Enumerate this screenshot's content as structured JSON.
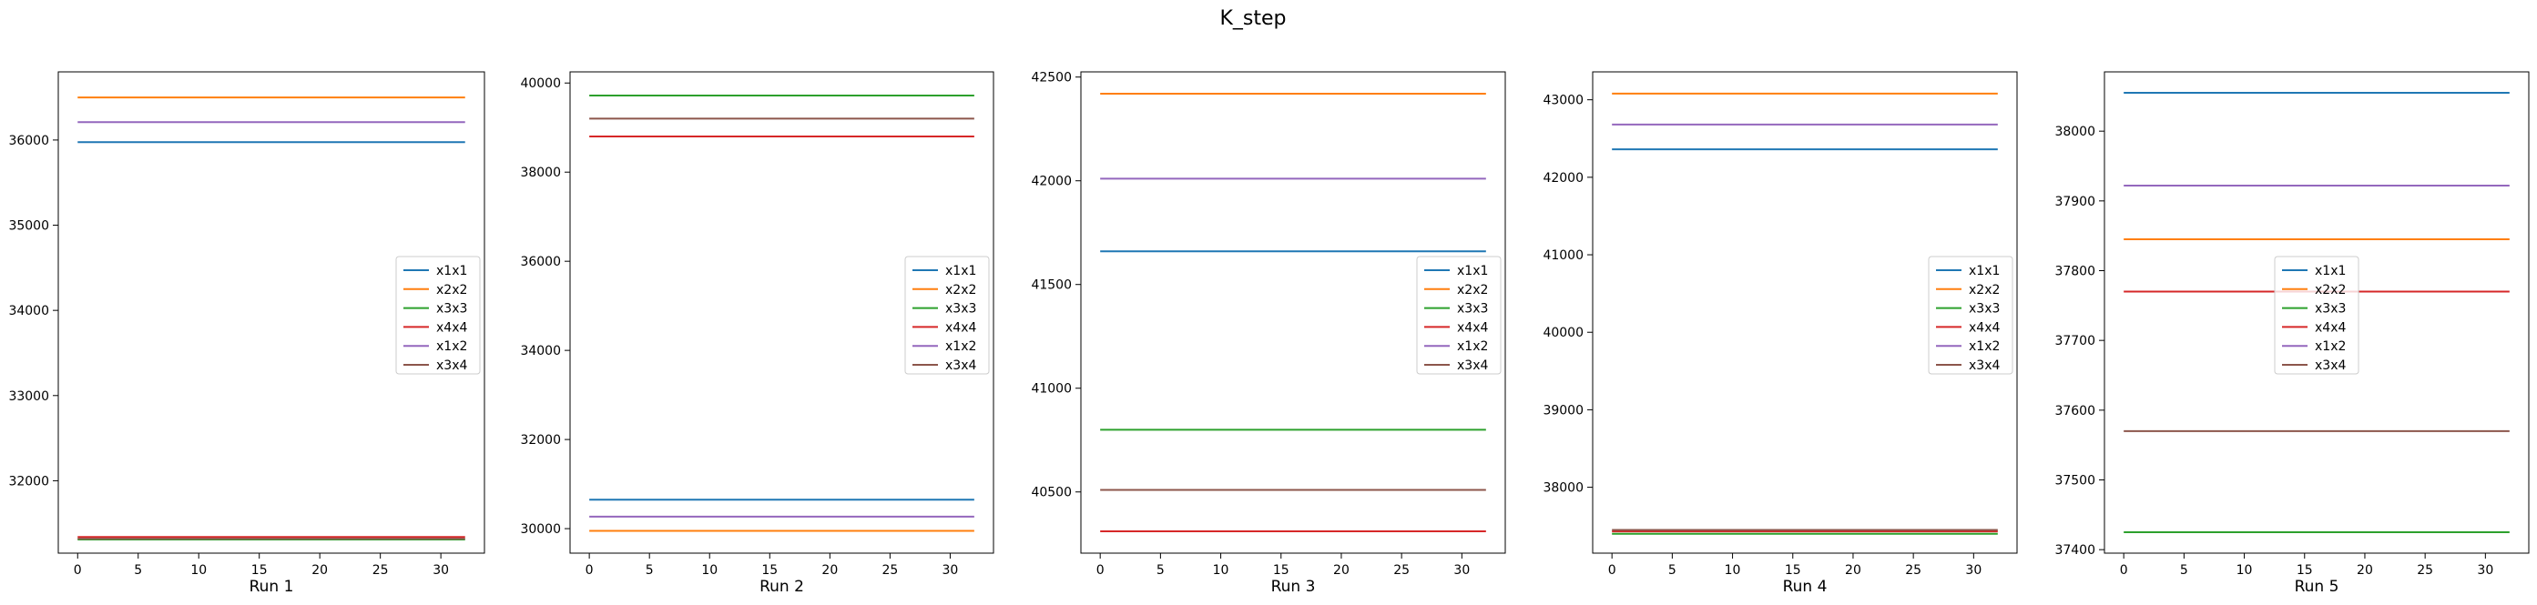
{
  "figure": {
    "title": "K_step"
  },
  "chart_data": [
    {
      "type": "line",
      "xlabel": "Run 1",
      "ylabel": "",
      "x_range": [
        0,
        32
      ],
      "xlim": [
        -1.6,
        33.6
      ],
      "ylim": [
        31150,
        36800
      ],
      "xticks": [
        0,
        5,
        10,
        15,
        20,
        25,
        30
      ],
      "yticks": [
        32000,
        33000,
        34000,
        35000,
        36000
      ],
      "legend_position": "center-right",
      "series": [
        {
          "name": "x1x1",
          "color": "#1f77b4",
          "values": [
            35975
          ]
        },
        {
          "name": "x2x2",
          "color": "#ff7f0e",
          "values": [
            36500
          ]
        },
        {
          "name": "x3x3",
          "color": "#2ca02c",
          "values": [
            31310
          ]
        },
        {
          "name": "x4x4",
          "color": "#d62728",
          "values": [
            31340
          ]
        },
        {
          "name": "x1x2",
          "color": "#9467bd",
          "values": [
            36210
          ]
        },
        {
          "name": "x3x4",
          "color": "#8c564b",
          "values": [
            31320
          ]
        }
      ]
    },
    {
      "type": "line",
      "xlabel": "Run 2",
      "ylabel": "",
      "x_range": [
        0,
        32
      ],
      "xlim": [
        -1.6,
        33.6
      ],
      "ylim": [
        29450,
        40250
      ],
      "xticks": [
        0,
        5,
        10,
        15,
        20,
        25,
        30
      ],
      "yticks": [
        30000,
        32000,
        34000,
        36000,
        38000,
        40000
      ],
      "legend_position": "center-right",
      "series": [
        {
          "name": "x1x1",
          "color": "#1f77b4",
          "values": [
            30650
          ]
        },
        {
          "name": "x2x2",
          "color": "#ff7f0e",
          "values": [
            29950
          ]
        },
        {
          "name": "x3x3",
          "color": "#2ca02c",
          "values": [
            39720
          ]
        },
        {
          "name": "x4x4",
          "color": "#d62728",
          "values": [
            38800
          ]
        },
        {
          "name": "x1x2",
          "color": "#9467bd",
          "values": [
            30270
          ]
        },
        {
          "name": "x3x4",
          "color": "#8c564b",
          "values": [
            39200
          ]
        }
      ]
    },
    {
      "type": "line",
      "xlabel": "Run 3",
      "ylabel": "",
      "x_range": [
        0,
        32
      ],
      "xlim": [
        -1.6,
        33.6
      ],
      "ylim": [
        40205,
        42525
      ],
      "xticks": [
        0,
        5,
        10,
        15,
        20,
        25,
        30
      ],
      "yticks": [
        40500,
        41000,
        41500,
        42000,
        42500
      ],
      "legend_position": "center-right",
      "series": [
        {
          "name": "x1x1",
          "color": "#1f77b4",
          "values": [
            41660
          ]
        },
        {
          "name": "x2x2",
          "color": "#ff7f0e",
          "values": [
            42420
          ]
        },
        {
          "name": "x3x3",
          "color": "#2ca02c",
          "values": [
            40800
          ]
        },
        {
          "name": "x4x4",
          "color": "#d62728",
          "values": [
            40310
          ]
        },
        {
          "name": "x1x2",
          "color": "#9467bd",
          "values": [
            42010
          ]
        },
        {
          "name": "x3x4",
          "color": "#8c564b",
          "values": [
            40510
          ]
        }
      ]
    },
    {
      "type": "line",
      "xlabel": "Run 4",
      "ylabel": "",
      "x_range": [
        0,
        32
      ],
      "xlim": [
        -1.6,
        33.6
      ],
      "ylim": [
        37150,
        43360
      ],
      "xticks": [
        0,
        5,
        10,
        15,
        20,
        25,
        30
      ],
      "yticks": [
        38000,
        39000,
        40000,
        41000,
        42000,
        43000
      ],
      "legend_position": "center-right",
      "series": [
        {
          "name": "x1x1",
          "color": "#1f77b4",
          "values": [
            42360
          ]
        },
        {
          "name": "x2x2",
          "color": "#ff7f0e",
          "values": [
            43080
          ]
        },
        {
          "name": "x3x3",
          "color": "#2ca02c",
          "values": [
            37400
          ]
        },
        {
          "name": "x4x4",
          "color": "#d62728",
          "values": [
            37430
          ]
        },
        {
          "name": "x1x2",
          "color": "#9467bd",
          "values": [
            42680
          ]
        },
        {
          "name": "x3x4",
          "color": "#8c564b",
          "values": [
            37450
          ]
        }
      ]
    },
    {
      "type": "line",
      "xlabel": "Run 5",
      "ylabel": "",
      "x_range": [
        0,
        32
      ],
      "xlim": [
        -1.6,
        33.6
      ],
      "ylim": [
        37395,
        38085
      ],
      "xticks": [
        0,
        5,
        10,
        15,
        20,
        25,
        30
      ],
      "yticks": [
        37400,
        37500,
        37600,
        37700,
        37800,
        37900,
        38000
      ],
      "legend_position": "center",
      "series": [
        {
          "name": "x1x1",
          "color": "#1f77b4",
          "values": [
            38055
          ]
        },
        {
          "name": "x2x2",
          "color": "#ff7f0e",
          "values": [
            37845
          ]
        },
        {
          "name": "x3x3",
          "color": "#2ca02c",
          "values": [
            37425
          ]
        },
        {
          "name": "x4x4",
          "color": "#d62728",
          "values": [
            37770
          ]
        },
        {
          "name": "x1x2",
          "color": "#9467bd",
          "values": [
            37922
          ]
        },
        {
          "name": "x3x4",
          "color": "#8c564b",
          "values": [
            37570
          ]
        }
      ]
    }
  ]
}
